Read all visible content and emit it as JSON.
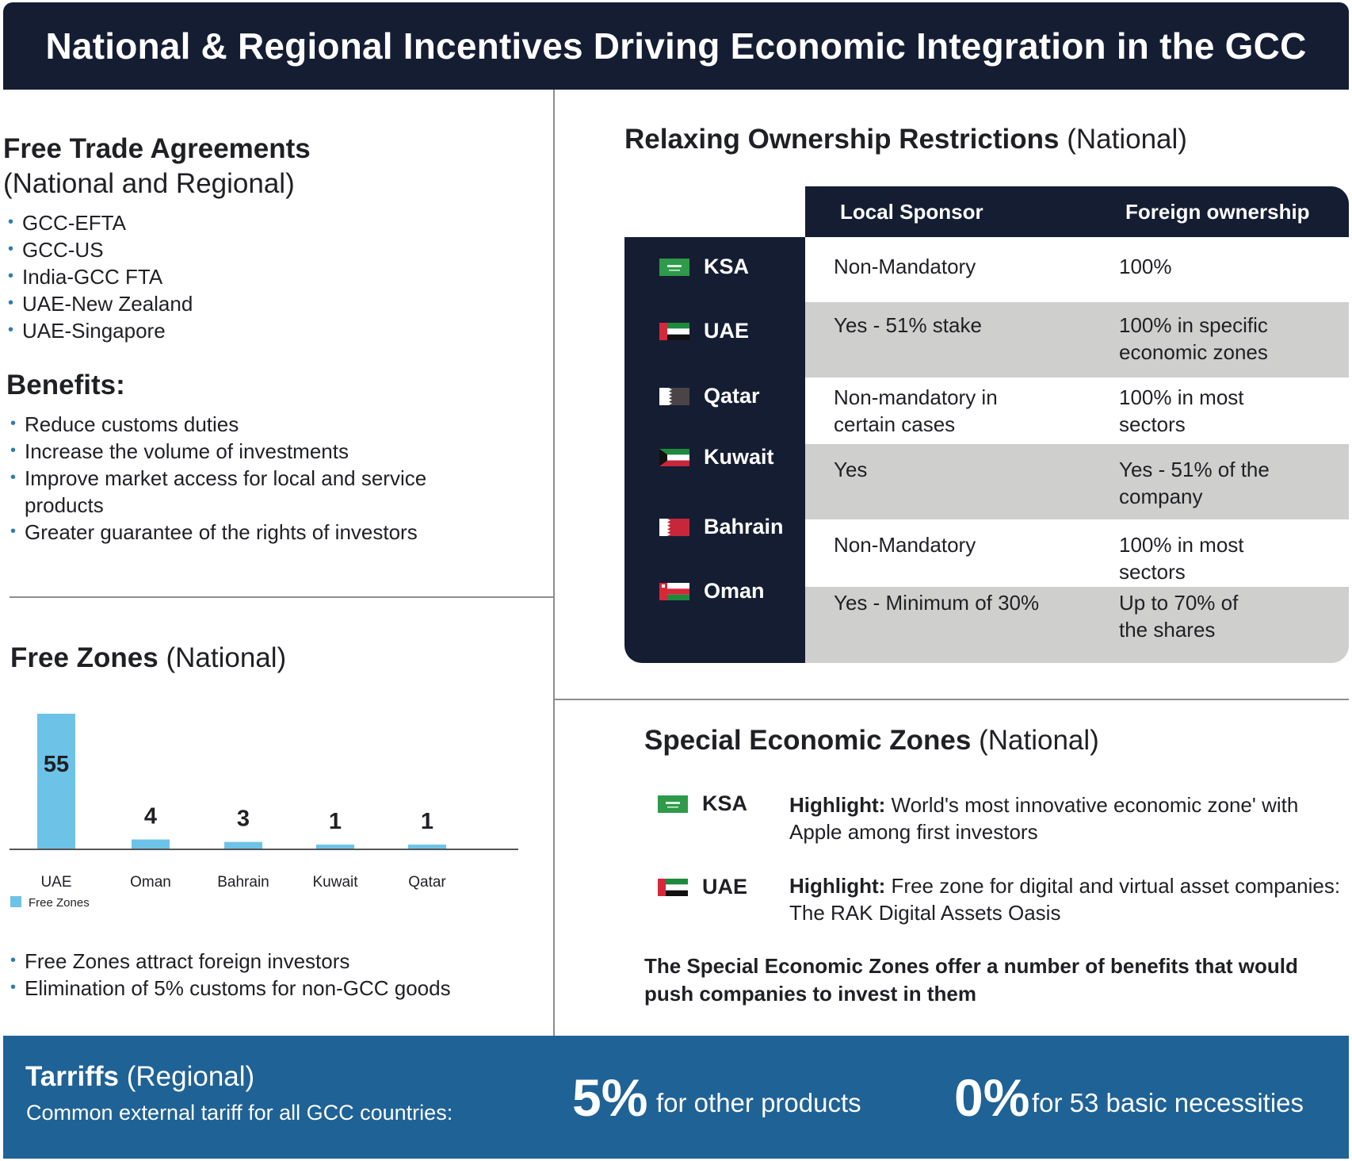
{
  "title": "National & Regional Incentives Driving Economic Integration in the GCC",
  "fta": {
    "title_bold": "Free Trade Agreements",
    "title_regular": "(National and Regional)",
    "items": [
      "GCC-EFTA",
      "GCC-US",
      "India-GCC FTA",
      "UAE-New Zealand",
      "UAE-Singapore"
    ]
  },
  "benefits": {
    "title": "Benefits:",
    "items": [
      "Reduce customs duties",
      "Increase the volume of investments",
      "Improve market access for local and service products",
      "Greater guarantee of the rights of investors"
    ]
  },
  "free_zones": {
    "title_bold": "Free Zones",
    "title_regular": "(National)",
    "legend": "Free Zones",
    "bar_color": "#6cc3e7",
    "items": [
      "Free Zones attract foreign investors",
      "Elimination of 5% customs for non-GCC goods"
    ]
  },
  "chart_data": {
    "type": "bar",
    "categories": [
      "UAE",
      "Oman",
      "Bahrain",
      "Kuwait",
      "Qatar"
    ],
    "series": [
      {
        "name": "Free Zones",
        "values": [
          55,
          4,
          3,
          1,
          1
        ]
      }
    ],
    "title": "",
    "xlabel": "",
    "ylabel": "",
    "ylim": [
      0,
      55
    ],
    "legend": "bottom-left",
    "grid": false
  },
  "ownership": {
    "title_bold": "Relaxing Ownership Restrictions",
    "title_regular": "(National)",
    "headers": [
      "Local Sponsor",
      "Foreign ownership"
    ],
    "rows": [
      {
        "country": "KSA",
        "sponsor": "Non-Mandatory",
        "foreign": "100%"
      },
      {
        "country": "UAE",
        "sponsor": "Yes - 51% stake",
        "foreign": "100% in specific economic zones"
      },
      {
        "country": "Qatar",
        "sponsor": "Non-mandatory in certain cases",
        "foreign": "100% in most sectors"
      },
      {
        "country": "Kuwait",
        "sponsor": "Yes",
        "foreign": "Yes - 51% of the company"
      },
      {
        "country": "Bahrain",
        "sponsor": "Non-Mandatory",
        "foreign": "100% in most sectors"
      },
      {
        "country": "Oman",
        "sponsor": "Yes - Minimum of 30%",
        "foreign": "Up to 70% of the shares"
      }
    ]
  },
  "sez": {
    "title_bold": "Special Economic Zones",
    "title_regular": "(National)",
    "rows": [
      {
        "country": "KSA",
        "label": "Highlight:",
        "text": "World's most innovative economic zone' with Apple among first investors"
      },
      {
        "country": "UAE",
        "label": "Highlight:",
        "text": "Free zone for digital and virtual asset companies: The RAK Digital Assets Oasis"
      }
    ],
    "note": "The Special Economic Zones offer a number of benefits that would push companies to invest in them"
  },
  "tariffs": {
    "title_bold": "Tarriffs",
    "title_regular": "(Regional)",
    "subtitle": "Common external tariff for all GCC countries:",
    "rate1": "5%",
    "rate1_label": "for other products",
    "rate2": "0%",
    "rate2_label": "for 53 basic necessities"
  },
  "colors": {
    "navy": "#151d33",
    "accent_blue": "#1f6296",
    "table_gray": "#cfcfce"
  }
}
